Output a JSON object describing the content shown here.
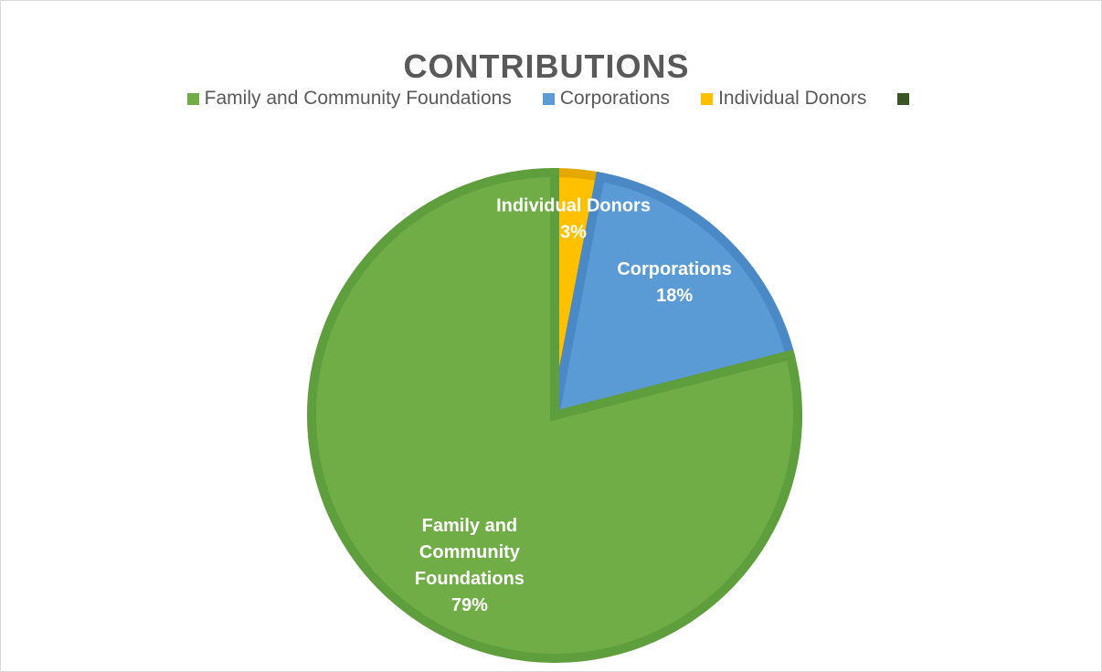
{
  "chart_data": {
    "type": "pie",
    "title": "CONTRIBUTIONS",
    "slices": [
      {
        "label": "Family and Community Foundations",
        "value": 79,
        "display": "79%",
        "color": "#70ad47",
        "edge": "#5f9e3c"
      },
      {
        "label": "Corporations",
        "value": 18,
        "display": "18%",
        "color": "#5b9bd5",
        "edge": "#4a89c5"
      },
      {
        "label": "Individual Donors",
        "value": 3,
        "display": "3%",
        "color": "#ffc000",
        "edge": "#e5a800"
      }
    ],
    "legend": {
      "placement": "top",
      "entries": [
        {
          "label": "Family and Community Foundations",
          "color": "#70ad47"
        },
        {
          "label": "Corporations",
          "color": "#5b9bd5"
        },
        {
          "label": "Individual Donors",
          "color": "#ffc000"
        },
        {
          "label": "",
          "color": "#375623"
        }
      ]
    }
  }
}
